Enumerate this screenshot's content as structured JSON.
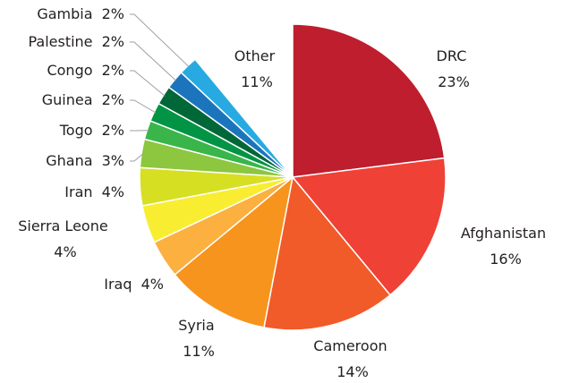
{
  "chart_data": {
    "type": "pie",
    "title": "",
    "legend": "none",
    "slices": [
      {
        "name": "DRC",
        "value": 23,
        "label": "23%",
        "color": "#be1e2d"
      },
      {
        "name": "Afghanistan",
        "value": 16,
        "label": "16%",
        "color": "#ef4136"
      },
      {
        "name": "Cameroon",
        "value": 14,
        "label": "14%",
        "color": "#f15a29"
      },
      {
        "name": "Syria",
        "value": 11,
        "label": "11%",
        "color": "#f7941d"
      },
      {
        "name": "Iraq",
        "value": 4,
        "label": "4%",
        "color": "#fbb040"
      },
      {
        "name": "Sierra Leone",
        "value": 4,
        "label": "4%",
        "color": "#f9ed32"
      },
      {
        "name": "Iran",
        "value": 4,
        "label": "4%",
        "color": "#d7df23"
      },
      {
        "name": "Ghana",
        "value": 3,
        "label": "3%",
        "color": "#8dc63f"
      },
      {
        "name": "Togo",
        "value": 2,
        "label": "2%",
        "color": "#39b54a"
      },
      {
        "name": "Guinea",
        "value": 2,
        "label": "2%",
        "color": "#009444"
      },
      {
        "name": "Congo",
        "value": 2,
        "label": "2%",
        "color": "#006838"
      },
      {
        "name": "Palestine",
        "value": 2,
        "label": "2%",
        "color": "#1c75bc"
      },
      {
        "name": "Gambia",
        "value": 2,
        "label": "2%",
        "color": "#27aae1"
      },
      {
        "name": "Other",
        "value": 11,
        "label": "11%",
        "color": "#ffffff"
      }
    ]
  }
}
